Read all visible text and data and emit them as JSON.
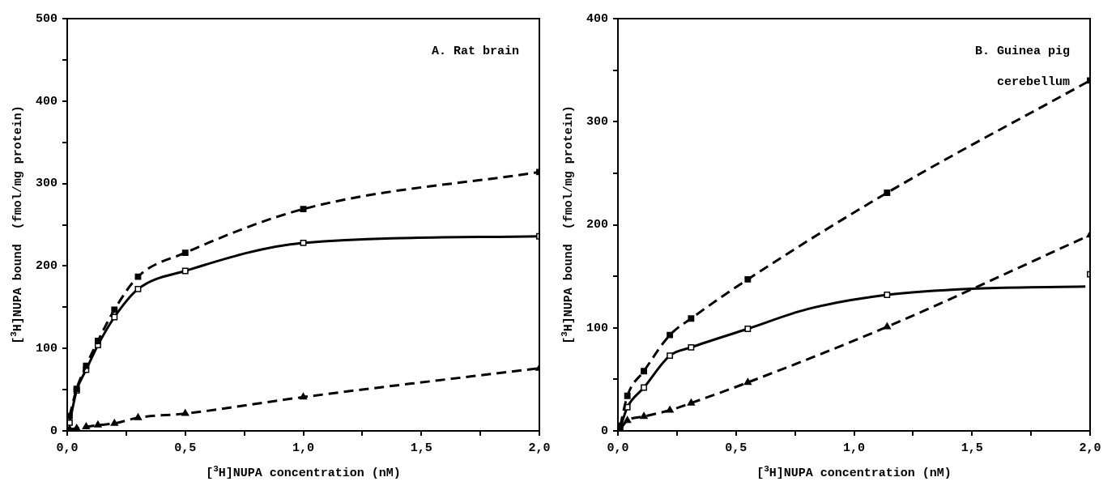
{
  "chart_data": [
    {
      "type": "line",
      "xlabel": "[$^{3}$H]NUPA concentration (nM)",
      "ylabel": "[$^{3}$H]NUPA bound  (fmol/mg protein)",
      "annotations": [
        "A. Rat brain"
      ],
      "x": [
        0.01,
        0.04,
        0.08,
        0.13,
        0.2,
        0.3,
        0.5,
        1.0,
        2.0
      ],
      "series": [
        {
          "color": "#000000",
          "marker": "square",
          "line_style": "dashed",
          "values": [
            18,
            51,
            79,
            109,
            147,
            187,
            216,
            269,
            314
          ]
        },
        {
          "color": "#000000",
          "marker": "square",
          "line_style": "solid",
          "values": [
            10,
            49,
            74,
            104,
            138,
            172,
            194,
            228,
            236
          ]
        },
        {
          "color": "#000000",
          "marker": "triangle",
          "line_style": "dashed",
          "values": [
            2,
            3,
            5,
            7,
            9,
            16,
            21,
            41,
            76
          ]
        }
      ],
      "xlim": [
        0,
        2
      ],
      "xticks": [
        {
          "value": 0,
          "label": "0,0"
        },
        {
          "value": 0.25,
          "label": null
        },
        {
          "value": 0.5,
          "label": "0,5"
        },
        {
          "value": 0.75,
          "label": null
        },
        {
          "value": 1,
          "label": "1,0"
        },
        {
          "value": 1.25,
          "label": null
        },
        {
          "value": 1.5,
          "label": "1,5"
        },
        {
          "value": 1.75,
          "label": null
        },
        {
          "value": 2,
          "label": "2,0"
        }
      ],
      "ylim": [
        0,
        500
      ],
      "yticks": [
        0,
        {
          "value": 50,
          "label": null
        },
        100,
        {
          "value": 150,
          "label": null
        },
        200,
        {
          "value": 250,
          "label": null
        },
        300,
        {
          "value": 350,
          "label": null
        },
        400,
        {
          "value": 450,
          "label": null
        },
        500
      ],
      "grid": false,
      "legend": false
    },
    {
      "type": "line",
      "xlabel": "[$^{3}$H]NUPA concentration (nM)",
      "ylabel": "[$^{3}$H]NUPA bound  (fmol/mg protein)",
      "annotations": [
        "B. Guinea pig cerebellum"
      ],
      "x": [
        0.01,
        0.04,
        0.11,
        0.22,
        0.31,
        0.55,
        1.14,
        2.0
      ],
      "series": [
        {
          "color": "#000000",
          "marker": "square",
          "line_style": "dashed",
          "values": [
            5,
            34,
            58,
            93,
            109,
            147,
            231,
            340
          ]
        },
        {
          "type": "scatter",
          "color": "#000000",
          "marker": "square",
          "line_style": "solid",
          "x": [
            0.04,
            0.11,
            0.22,
            0.31,
            0.55,
            1.14,
            2.0
          ],
          "values": [
            23,
            42,
            73,
            81,
            99,
            132,
            152
          ]
        },
        {
          "color": "#000000",
          "marker": "triangle",
          "line_style": "dashed",
          "values": [
            2,
            10,
            14,
            20,
            27,
            47,
            101,
            190
          ]
        },
        {
          "color": "#000000",
          "marker": "none",
          "line_style": "solid",
          "x": [
            0.01,
            0.04,
            0.11,
            0.22,
            0.31,
            0.55,
            0.8,
            1.14,
            1.5,
            1.98
          ],
          "values": [
            3,
            23,
            42,
            73,
            81,
            99,
            118,
            132,
            138,
            140
          ]
        }
      ],
      "xlim": [
        0,
        2
      ],
      "xticks": [
        {
          "value": 0,
          "label": "0,0"
        },
        {
          "value": 0.25,
          "label": null
        },
        {
          "value": 0.5,
          "label": "0,5"
        },
        {
          "value": 0.75,
          "label": null
        },
        {
          "value": 1,
          "label": "1,0"
        },
        {
          "value": 1.25,
          "label": null
        },
        {
          "value": 1.5,
          "label": "1,5"
        },
        {
          "value": 1.75,
          "label": null
        },
        {
          "value": 2,
          "label": "2,0"
        }
      ],
      "ylim": [
        0,
        400
      ],
      "yticks": [
        0,
        {
          "value": 50,
          "label": null
        },
        100,
        {
          "value": 150,
          "label": null
        },
        200,
        {
          "value": 250,
          "label": null
        },
        300,
        {
          "value": 350,
          "label": null
        },
        400
      ],
      "grid": false,
      "legend": false
    }
  ]
}
